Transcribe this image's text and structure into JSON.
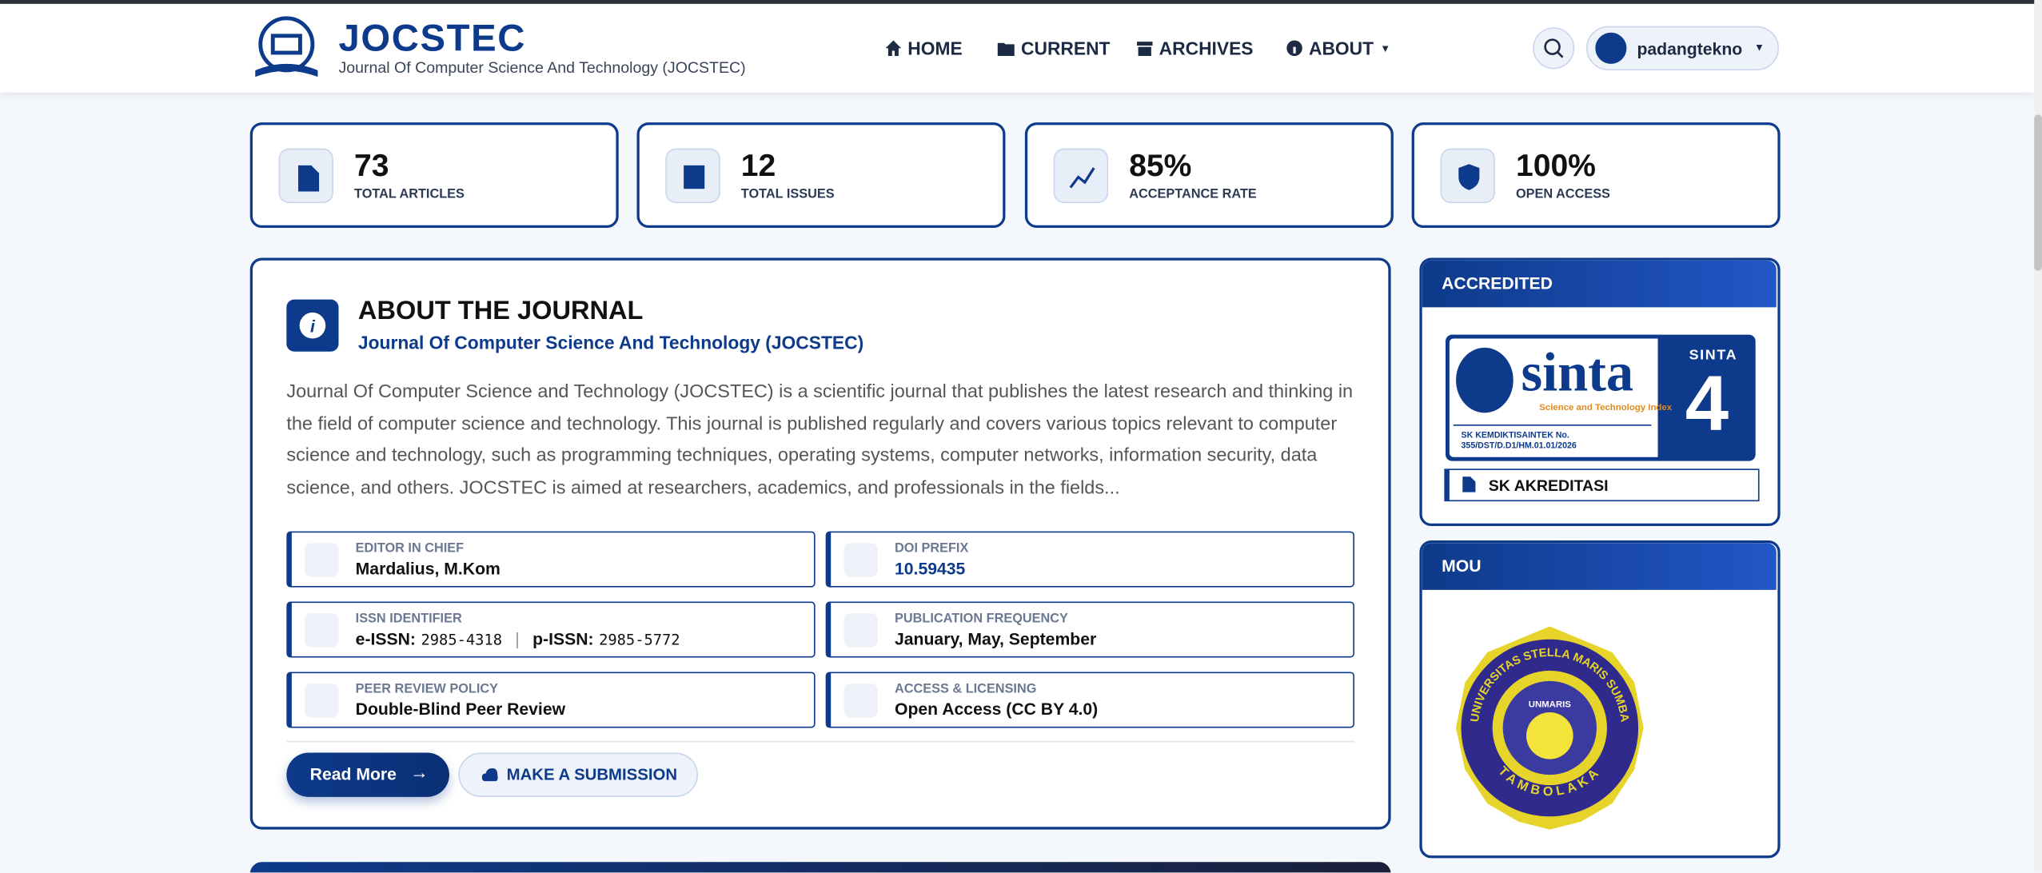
{
  "header": {
    "logo_title": "JOCSTEC",
    "logo_subtitle": "Journal Of Computer Science And Technology (JOCSTEC)",
    "nav": [
      "HOME",
      "CURRENT",
      "ARCHIVES",
      "ABOUT"
    ],
    "user": "padangtekno"
  },
  "stats": [
    {
      "value": "73",
      "label": "TOTAL ARTICLES"
    },
    {
      "value": "12",
      "label": "TOTAL ISSUES"
    },
    {
      "value": "85%",
      "label": "ACCEPTANCE RATE"
    },
    {
      "value": "100%",
      "label": "OPEN ACCESS"
    }
  ],
  "about": {
    "title": "ABOUT THE JOURNAL",
    "subtitle": "Journal Of Computer Science And Technology (JOCSTEC)",
    "description": "Journal Of Computer Science and Technology (JOCSTEC) is a scientific journal that publishes the latest research and thinking in the field of computer science and technology. This journal is published regularly and covers various topics relevant to computer science and technology, such as programming techniques, operating systems, computer networks, information security, data science, and others. JOCSTEC is aimed at researchers, academics, and professionals in the fields...",
    "details": [
      {
        "label": "EDITOR IN CHIEF",
        "value": "Mardalius, M.Kom"
      },
      {
        "label": "DOI PREFIX",
        "value": "10.59435"
      },
      {
        "label": "ISSN IDENTIFIER",
        "e_label": "e-ISSN:",
        "e_value": "2985-4318",
        "separator": "|",
        "p_label": "p-ISSN:",
        "p_value": "2985-5772"
      },
      {
        "label": "PUBLICATION FREQUENCY",
        "value": "January, May, September"
      },
      {
        "label": "PEER REVIEW POLICY",
        "value": "Double-Blind Peer Review"
      },
      {
        "label": "ACCESS & LICENSING",
        "value": "Open Access (CC BY 4.0)"
      }
    ],
    "buttons": [
      "Read More",
      "MAKE A SUBMISSION"
    ]
  },
  "sidebar": {
    "accredited": {
      "title": "ACCREDITED",
      "badge": {
        "brand": "sinta",
        "tagline": "Science and Technology Index",
        "level_label": "SINTA",
        "level": "4",
        "sk_line1": "SK KEMDIKTISAINTEK No.",
        "sk_line2": "355/DST/D.D1/HM.01.01/2026"
      },
      "button": "SK AKREDITASI"
    },
    "mou": {
      "title": "MOU",
      "seal_ring": "UNIVERSITAS STELLA MARIS SUMBA",
      "seal_center": "UNMARIS",
      "seal_bottom": "TAMBOLAKA"
    }
  }
}
